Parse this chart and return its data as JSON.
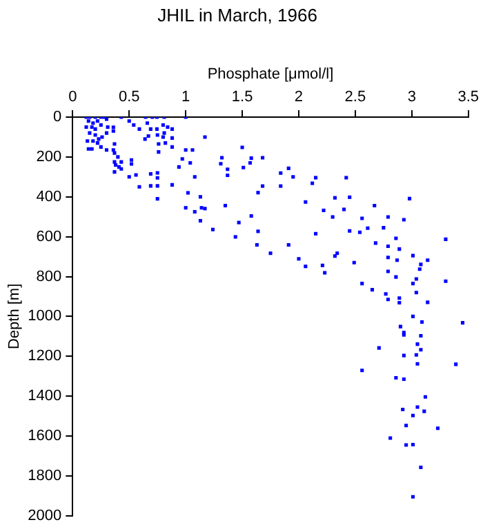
{
  "chart_data": {
    "type": "scatter",
    "title": "JHIL in March, 1966",
    "xlabel": "Phosphate [μmol/l]",
    "ylabel": "Depth [m]",
    "xlim": [
      0,
      3.5
    ],
    "xticks": [
      0,
      0.5,
      1,
      1.5,
      2,
      2.5,
      3,
      3.5
    ],
    "ylim": [
      2000,
      0
    ],
    "yticks": [
      0,
      200,
      400,
      600,
      800,
      1000,
      1200,
      1400,
      1600,
      1800,
      2000
    ],
    "grid": false,
    "legend": false,
    "marker": "square",
    "series": [
      {
        "color": "#0000ff",
        "x": [
          0.12,
          0.15,
          0.2,
          0.25,
          0.28,
          0.14,
          0.18,
          0.22,
          0.3,
          0.12,
          0.17,
          0.2,
          0.25,
          0.15,
          0.2,
          0.3,
          0.13,
          0.18,
          0.23,
          0.17,
          0.25,
          0.14,
          0.36,
          0.43,
          0.5,
          0.54,
          0.59,
          0.645,
          0.705,
          0.745,
          0.81,
          0.66,
          0.69,
          0.745,
          0.8,
          0.84,
          0.88,
          0.81,
          0.75,
          0.8,
          0.88,
          0.64,
          0.67,
          0.76,
          0.82,
          0.88,
          0.76,
          1.0,
          0.36,
          0.31,
          0.26,
          0.22,
          0.3,
          0.36,
          0.37,
          0.37,
          0.4,
          0.37,
          0.43,
          0.38,
          0.41,
          0.37,
          0.43,
          0.52,
          0.52,
          0.5,
          0.56,
          0.59,
          0.69,
          0.75,
          0.75,
          0.69,
          0.75,
          0.75,
          0.88,
          0.94,
          0.97,
          1.0,
          1.06,
          1.04,
          1.08,
          1.02,
          1.0,
          1.08,
          1.13,
          1.14,
          1.13,
          1.17,
          1.5,
          1.32,
          1.31,
          1.37,
          1.37,
          1.51,
          1.57,
          1.58,
          1.68,
          1.91,
          1.84,
          1.95,
          2.15,
          2.12,
          2.42,
          1.68,
          1.84,
          1.64,
          2.32,
          2.45,
          2.98,
          2.06,
          2.22,
          2.4,
          2.67,
          1.35,
          1.17,
          2.3,
          2.56,
          2.79,
          2.93,
          1.58,
          1.47,
          1.24,
          2.45,
          2.54,
          2.61,
          2.75,
          2.15,
          1.64,
          1.44,
          2.86,
          3.3,
          2.68,
          2.79,
          2.89,
          1.63,
          1.91,
          1.75,
          2.34,
          2.32,
          2.0,
          2.49,
          2.79,
          2.87,
          3.01,
          3.14,
          3.08,
          3.07,
          2.06,
          2.21,
          2.23,
          2.79,
          2.86,
          3.04,
          3.01,
          3.3,
          2.56,
          2.65,
          2.77,
          3.04,
          2.79,
          2.89,
          2.89,
          3.14,
          3.01,
          3.09,
          3.45,
          2.9,
          2.93,
          2.93,
          3.08,
          3.05,
          2.71,
          3.08,
          2.93,
          3.04,
          3.05,
          3.39,
          2.56,
          2.86,
          2.93,
          3.12,
          2.92,
          3.05,
          3.11,
          3.01,
          2.95,
          3.23,
          2.81,
          2.95,
          3.01,
          3.08,
          3.01
        ],
        "values": [
          0,
          0,
          0,
          0,
          0,
          20,
          30,
          20,
          10,
          50,
          50,
          60,
          40,
          80,
          90,
          80,
          120,
          120,
          110,
          160,
          150,
          160,
          51,
          0,
          20,
          40,
          60,
          0,
          0,
          0,
          0,
          30,
          60,
          60,
          40,
          50,
          60,
          80,
          90,
          100,
          105,
          110,
          95,
          135,
          130,
          150,
          175,
          0,
          70,
          50,
          100,
          130,
          165,
          165,
          135,
          180,
          200,
          225,
          225,
          240,
          250,
          275,
          260,
          215,
          235,
          300,
          290,
          350,
          285,
          280,
          305,
          345,
          345,
          410,
          340,
          250,
          210,
          165,
          165,
          230,
          300,
          380,
          455,
          475,
          400,
          455,
          520,
          100,
          152,
          204,
          234,
          262,
          292,
          253,
          230,
          206,
          204,
          257,
          281,
          300,
          304,
          332,
          304,
          346,
          346,
          379,
          405,
          402,
          409,
          426,
          468,
          463,
          444,
          444,
          459,
          501,
          508,
          501,
          515,
          496,
          529,
          564,
          571,
          578,
          557,
          555,
          585,
          573,
          601,
          608,
          613,
          632,
          648,
          662,
          641,
          641,
          683,
          683,
          697,
          711,
          730,
          704,
          718,
          695,
          718,
          739,
          763,
          749,
          744,
          781,
          774,
          802,
          812,
          835,
          823,
          835,
          866,
          887,
          880,
          915,
          908,
          931,
          929,
          1000,
          1028,
          1032,
          1051,
          1081,
          1093,
          1097,
          1139,
          1158,
          1167,
          1196,
          1193,
          1238,
          1240,
          1271,
          1308,
          1315,
          1404,
          1467,
          1455,
          1476,
          1497,
          1547,
          1561,
          1610,
          1645,
          1643,
          1757,
          1905
        ]
      }
    ]
  }
}
